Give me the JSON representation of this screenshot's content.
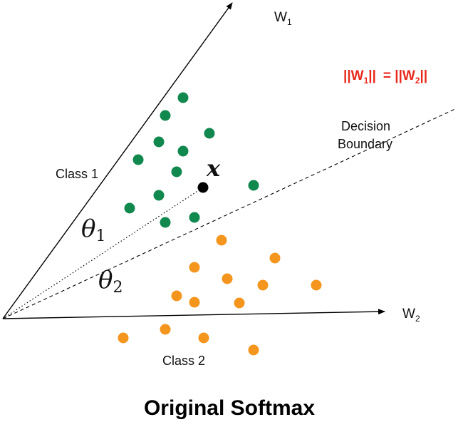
{
  "labels": {
    "w1": "W",
    "w1_sub": "1",
    "w2": "W",
    "w2_sub": "2",
    "class1": "Class 1",
    "class2": "Class 2",
    "decision_line1": "Decision",
    "decision_line2": "Boundary",
    "x_symbol": "x",
    "theta1": "θ",
    "theta1_sub": "1",
    "theta2": "θ",
    "theta2_sub": "2",
    "norm_w1": "||W",
    "norm_w1_sub": "1",
    "norm_w1_end": "||",
    "norm_eq": "= ||W",
    "norm_w2_sub": "2",
    "norm_w2_end": "||",
    "title": "Original Softmax"
  },
  "colors": {
    "class1": "#10884e",
    "class2": "#f4961e",
    "sample": "#000000",
    "norm_text": "#e8291c"
  }
}
